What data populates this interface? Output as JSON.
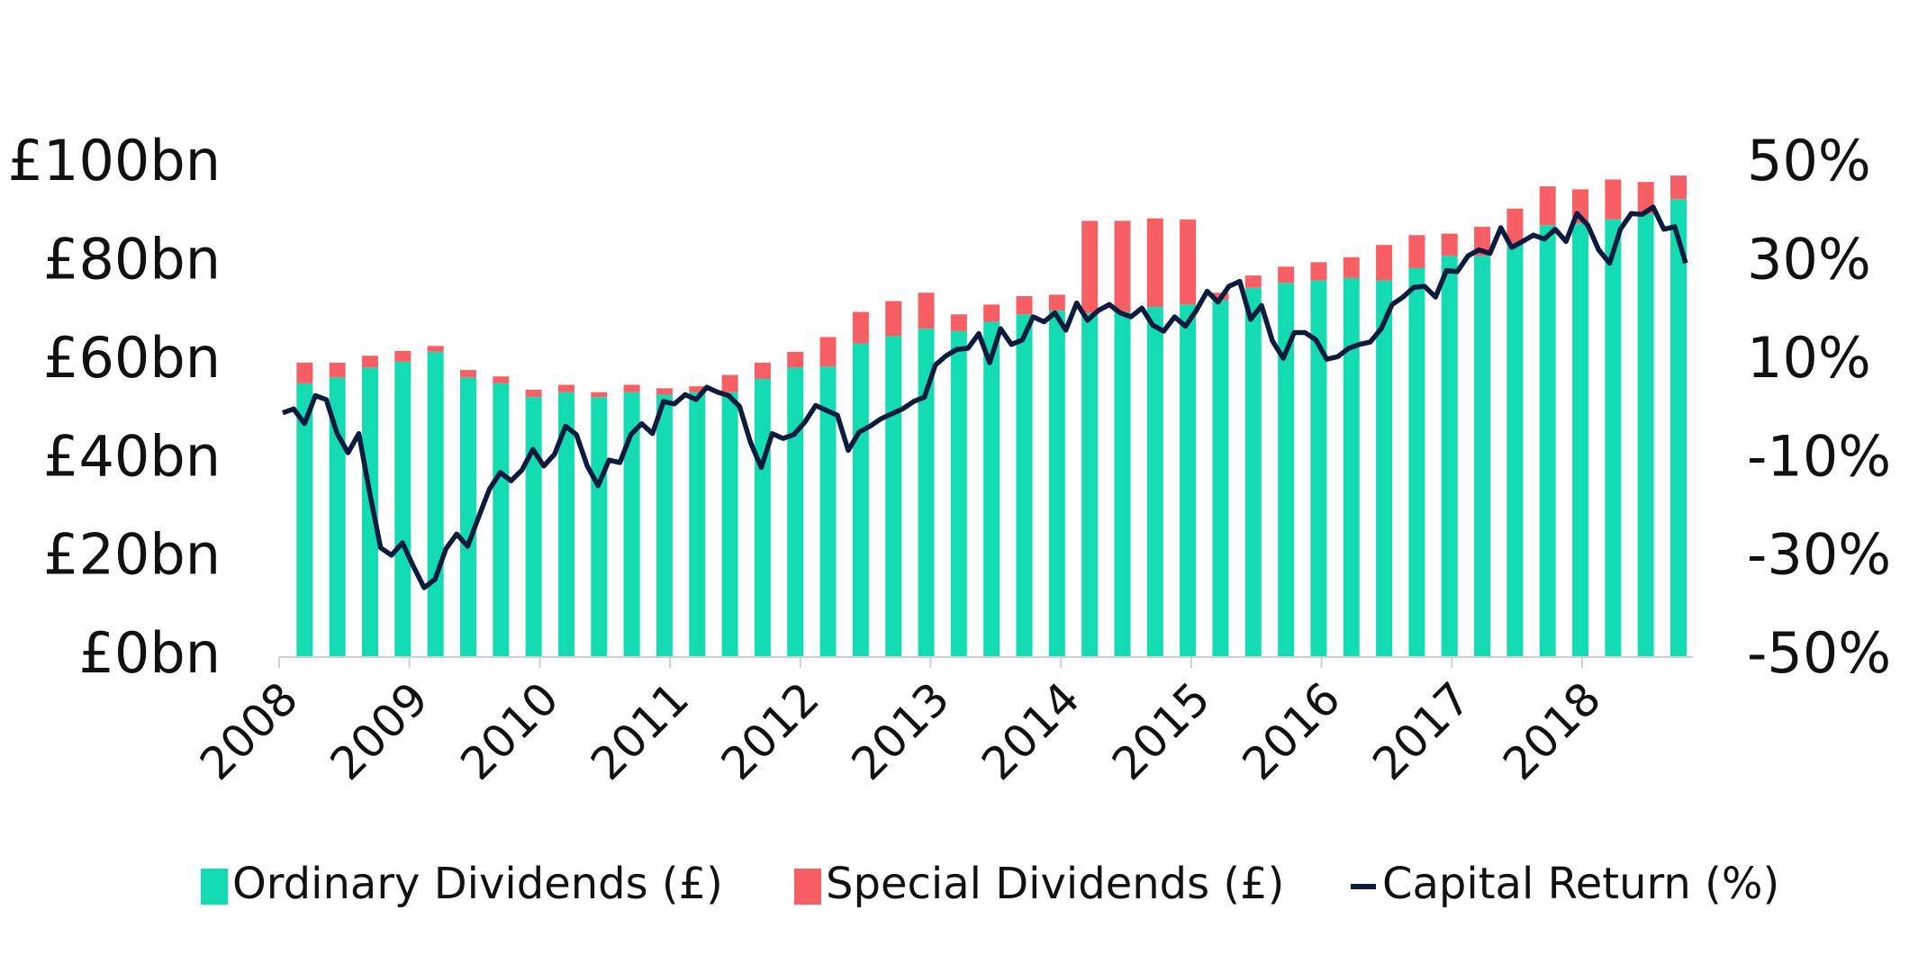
{
  "chart_data": {
    "type": "bar-line",
    "series": [
      {
        "name": "Ordinary Dividends (£)",
        "color": "#14dcb2",
        "type": "bar",
        "values": [
          55.6,
          56.8,
          58.8,
          60,
          62,
          56.8,
          55.6,
          52.8,
          53.8,
          52.8,
          53.8,
          53.3,
          53.8,
          53.8,
          56.5,
          58.8,
          59,
          63.7,
          65.2,
          66.7,
          66.2,
          68.1,
          69.6,
          70.4,
          69.9,
          70.1,
          71.1,
          71.6,
          72.5,
          75,
          76,
          76.5,
          77,
          76.5,
          79,
          81.5,
          81.5,
          84,
          87.7,
          88.1,
          88.9,
          90,
          93
        ]
      },
      {
        "name": "Special Dividends (£)",
        "color": "#f75f64",
        "type": "bar",
        "values": [
          4.2,
          3,
          2.4,
          2.2,
          1.2,
          1.5,
          1.4,
          1.5,
          1.5,
          1,
          1.5,
          1.3,
          1.2,
          3.5,
          3.3,
          3.2,
          6,
          6.4,
          7.1,
          7.3,
          3.4,
          3.5,
          3.7,
          3.2,
          18.7,
          18.5,
          18,
          17.3,
          1.5,
          2.5,
          3.3,
          3.7,
          4.2,
          7.2,
          6.7,
          4.5,
          5.9,
          7.1,
          7.9,
          6.9,
          8.1,
          6.5,
          4.8
        ]
      },
      {
        "name": "Capital Return (%)",
        "color": "#0d1b3e",
        "type": "line",
        "axis": "y2",
        "values": [
          -0.4,
          0.4,
          -2.6,
          3.1,
          2.3,
          -4.6,
          -8.5,
          -4.6,
          -16.7,
          -27.8,
          -29.3,
          -26.8,
          -31.5,
          -35.9,
          -34.2,
          -28,
          -25,
          -27.5,
          -21.6,
          -15.9,
          -12.5,
          -14.2,
          -12,
          -7.8,
          -11.2,
          -8.8,
          -3.1,
          -4.8,
          -11.2,
          -15.2,
          -10,
          -10.5,
          -4.8,
          -2.6,
          -4.6,
          1.9,
          1.4,
          3.3,
          2.3,
          4.8,
          3.8,
          3.1,
          0.9,
          -6.3,
          -11.5,
          -4.6,
          -5.6,
          -4.8,
          -2.3,
          1.1,
          0.1,
          -0.9,
          -8,
          -4.3,
          -3.1,
          -1.6,
          -0.6,
          0.4,
          1.9,
          2.8,
          9.3,
          11.2,
          12.5,
          12.7,
          15.7,
          9.8,
          16.7,
          13.5,
          14.4,
          19.1,
          18.1,
          19.9,
          16.4,
          21.9,
          18.4,
          20.4,
          21.6,
          19.9,
          19.1,
          20.9,
          17.4,
          16.2,
          19.1,
          17.2,
          20.4,
          24.3,
          22.1,
          25.3,
          26.3,
          18.6,
          21.4,
          14.2,
          10.7,
          15.9,
          15.9,
          14.4,
          10.5,
          11,
          12.7,
          13.5,
          14,
          16.7,
          21.6,
          23.1,
          25.1,
          25.3,
          23.1,
          28.5,
          28.3,
          31.5,
          32.7,
          32,
          37.2,
          33.2,
          34.4,
          35.7,
          34.9,
          36.9,
          34.4,
          40.1,
          37.7,
          32.7,
          30,
          36.9,
          40.1,
          39.9,
          41.4,
          36.9,
          37.4,
          30
        ]
      }
    ],
    "xlim": [
      2008,
      2018.85
    ],
    "xticks": [
      2008,
      2009,
      2010,
      2011,
      2012,
      2013,
      2014,
      2015,
      2016,
      2017,
      2018
    ],
    "ylim": [
      0,
      100
    ],
    "yticks": [
      {
        "value": 0,
        "label": "£0bn"
      },
      {
        "value": 20,
        "label": "£20bn"
      },
      {
        "value": 40,
        "label": "£40bn"
      },
      {
        "value": 60,
        "label": "£60bn"
      },
      {
        "value": 80,
        "label": "£80bn"
      },
      {
        "value": 100,
        "label": "£100bn"
      }
    ],
    "y2lim": [
      -50,
      50
    ],
    "y2ticks": [
      {
        "value": -50,
        "label": "-50%"
      },
      {
        "value": -30,
        "label": "-30%"
      },
      {
        "value": -10,
        "label": "-10%"
      },
      {
        "value": 10,
        "label": "10%"
      },
      {
        "value": 30,
        "label": "30%"
      },
      {
        "value": 50,
        "label": "50%"
      }
    ],
    "legend": "bottom"
  }
}
